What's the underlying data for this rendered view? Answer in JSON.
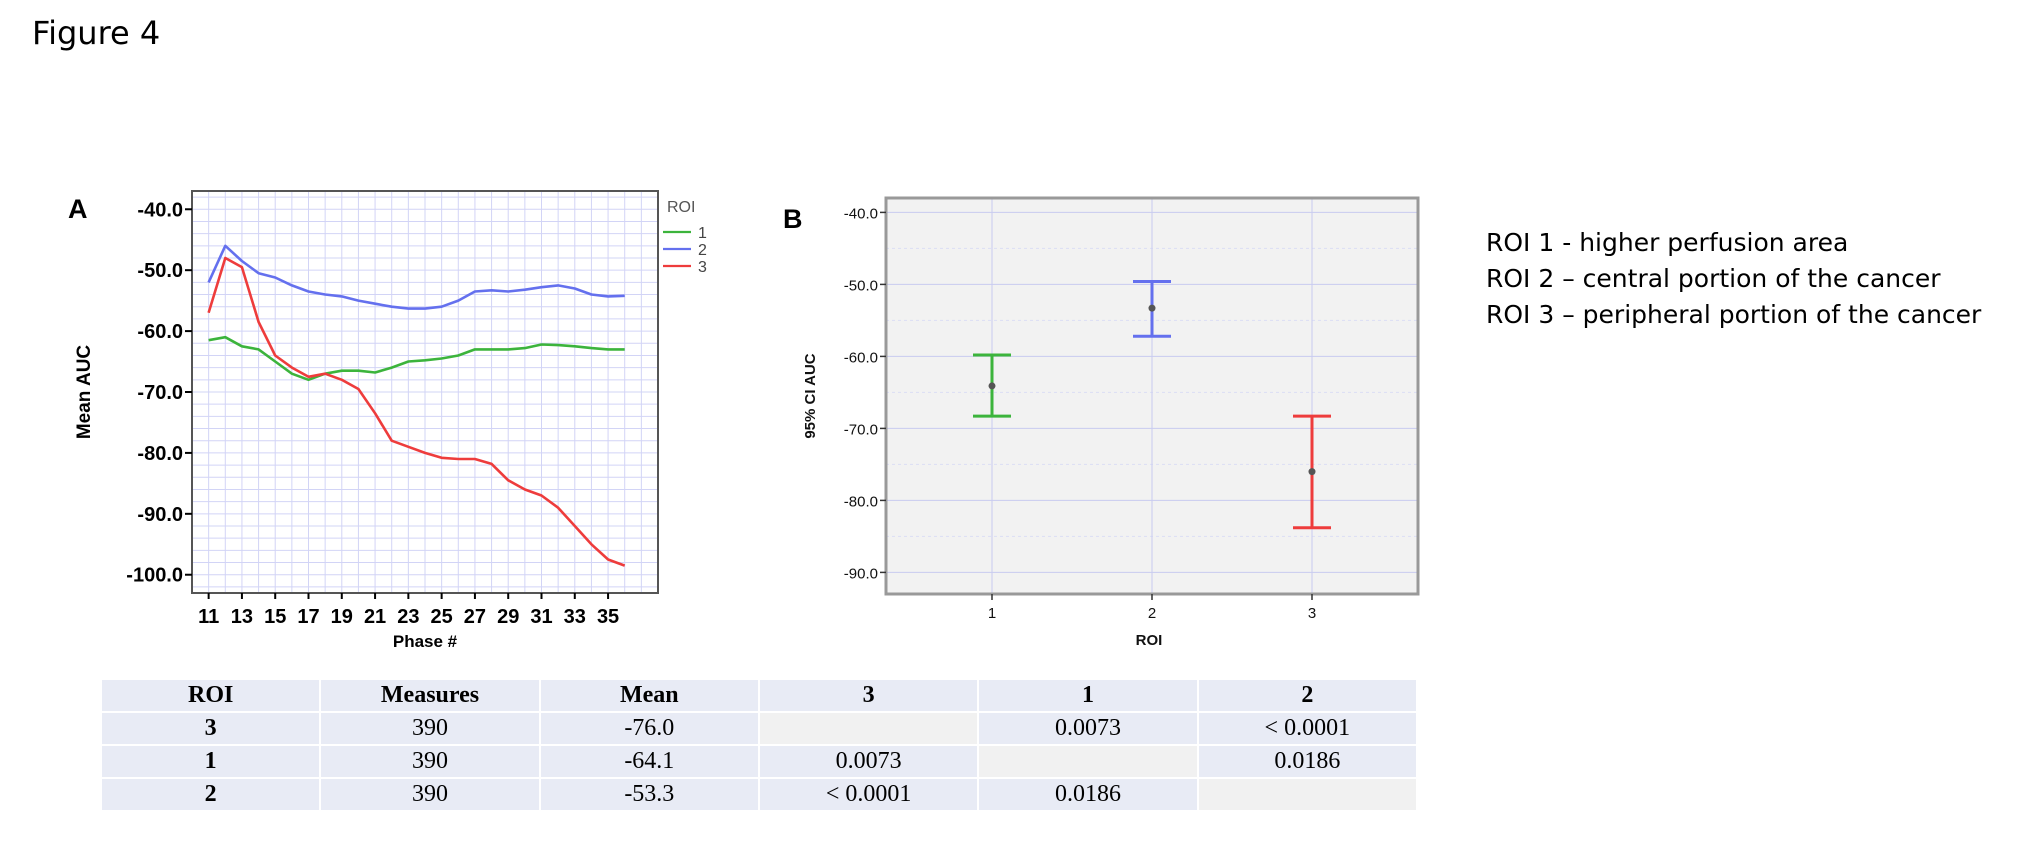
{
  "figure_title": "Figure 4",
  "panel_a_label": "A",
  "panel_b_label": "B",
  "legend": {
    "title": "ROI",
    "entries": [
      {
        "label": "1",
        "color": "#3cb43c"
      },
      {
        "label": "2",
        "color": "#6470ee"
      },
      {
        "label": "3",
        "color": "#ee3c3c"
      }
    ]
  },
  "roi_notes": [
    "ROI 1 - higher perfusion area",
    "ROI 2 – central portion of the cancer",
    "ROI 3 – peripheral portion of the cancer"
  ],
  "chart_data": [
    {
      "type": "line",
      "xlabel": "Phase #",
      "ylabel": "Mean AUC",
      "xlim": [
        10,
        38
      ],
      "ylim": [
        -103,
        -37
      ],
      "grid": true,
      "legend_position": "right",
      "x": [
        11,
        12,
        13,
        14,
        15,
        16,
        17,
        18,
        19,
        20,
        21,
        22,
        23,
        24,
        25,
        26,
        27,
        28,
        29,
        30,
        31,
        32,
        33,
        34,
        35,
        36
      ],
      "xticks": [
        "11",
        "13",
        "15",
        "17",
        "19",
        "21",
        "23",
        "25",
        "27",
        "29",
        "31",
        "33",
        "35"
      ],
      "yticks": [
        "-40.0",
        "-50.0",
        "-60.0",
        "-70.0",
        "-80.0",
        "-90.0",
        "-100.0"
      ],
      "series": [
        {
          "name": "1",
          "color": "#3cb43c",
          "values": [
            -61.5,
            -61,
            -62.5,
            -63,
            -65,
            -67,
            -68,
            -67,
            -66.5,
            -66.5,
            -66.8,
            -66,
            -65,
            -64.8,
            -64.5,
            -64,
            -63,
            -63,
            -63,
            -62.8,
            -62.2,
            -62.3,
            -62.5,
            -62.8,
            -63,
            -63
          ]
        },
        {
          "name": "2",
          "color": "#6470ee",
          "values": [
            -52,
            -46,
            -48.5,
            -50.5,
            -51.2,
            -52.5,
            -53.5,
            -54,
            -54.3,
            -55,
            -55.5,
            -56,
            -56.3,
            -56.3,
            -56,
            -55,
            -53.5,
            -53.3,
            -53.5,
            -53.2,
            -52.8,
            -52.5,
            -53,
            -54,
            -54.3,
            -54.2
          ]
        },
        {
          "name": "3",
          "color": "#ee3c3c",
          "values": [
            -57,
            -48,
            -49.5,
            -58.5,
            -64,
            -66,
            -67.5,
            -67,
            -68,
            -69.5,
            -73.5,
            -78,
            -79,
            -80,
            -80.8,
            -81,
            -81,
            -81.8,
            -84.5,
            -86,
            -87,
            -89,
            -92,
            -95,
            -97.5,
            -98.5
          ]
        }
      ]
    },
    {
      "type": "error_bar",
      "xlabel": "ROI",
      "ylabel": "95% CI AUC",
      "ylim": [
        -93,
        -38
      ],
      "grid": true,
      "categories": [
        "1",
        "2",
        "3"
      ],
      "yticks": [
        "-40.0",
        "-50.0",
        "-60.0",
        "-70.0",
        "-80.0",
        "-90.0"
      ],
      "series": [
        {
          "category": "1",
          "color": "#3cb43c",
          "mean": -64.1,
          "lower": -68.3,
          "upper": -59.8
        },
        {
          "category": "2",
          "color": "#6470ee",
          "mean": -53.3,
          "lower": -57.2,
          "upper": -49.6
        },
        {
          "category": "3",
          "color": "#ee3c3c",
          "mean": -76.0,
          "lower": -83.8,
          "upper": -68.3
        }
      ]
    }
  ],
  "table": {
    "headers": [
      "ROI",
      "Measures",
      "Mean",
      "3",
      "1",
      "2"
    ],
    "rows": [
      [
        "3",
        "390",
        "-76.0",
        "",
        "0.0073",
        "< 0.0001"
      ],
      [
        "1",
        "390",
        "-64.1",
        "0.0073",
        "",
        "0.0186"
      ],
      [
        "2",
        "390",
        "-53.3",
        "< 0.0001",
        "0.0186",
        ""
      ]
    ]
  }
}
